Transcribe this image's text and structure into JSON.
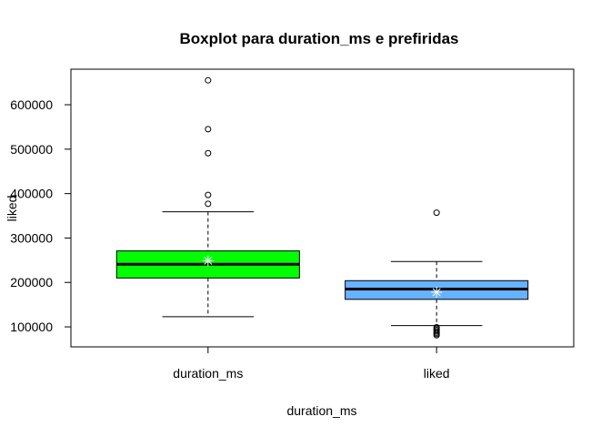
{
  "chart_data": {
    "type": "boxplot",
    "title": "Boxplot para  duration_ms e prefiridas",
    "xlabel": "duration_ms",
    "ylabel": "liked",
    "ylim": [
      55000,
      680000
    ],
    "yticks": [
      100000,
      200000,
      300000,
      400000,
      500000,
      600000
    ],
    "grid": false,
    "boxes": [
      {
        "category": "duration_ms",
        "whisker_low": 123000,
        "q1": 210000,
        "median": 241000,
        "q3": 271000,
        "whisker_high": 359000,
        "mean": 249000,
        "outliers": [
          377000,
          397000,
          491000,
          545000,
          655000
        ],
        "color": "#00ff00"
      },
      {
        "category": "liked",
        "whisker_low": 103000,
        "q1": 162000,
        "median": 185000,
        "q3": 204000,
        "whisker_high": 247000,
        "mean": 178000,
        "outliers": [
          81000,
          84000,
          87000,
          90000,
          93000,
          96000,
          99000,
          357000
        ],
        "color": "#66b2ff"
      }
    ]
  }
}
